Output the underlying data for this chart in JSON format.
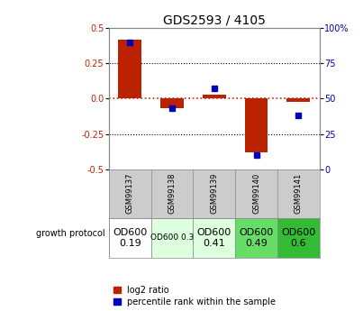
{
  "title": "GDS2593 / 4105",
  "samples": [
    "GSM99137",
    "GSM99138",
    "GSM99139",
    "GSM99140",
    "GSM99141"
  ],
  "log2_ratio": [
    0.42,
    -0.07,
    0.03,
    -0.38,
    -0.02
  ],
  "percentile_rank": [
    90,
    43,
    57,
    10,
    38
  ],
  "ylim_left": [
    -0.5,
    0.5
  ],
  "ylim_right": [
    0,
    100
  ],
  "yticks_left": [
    -0.5,
    -0.25,
    0.0,
    0.25,
    0.5
  ],
  "yticks_right": [
    0,
    25,
    50,
    75,
    100
  ],
  "growth_protocol_labels": [
    "OD600\n0.19",
    "OD600 0.3",
    "OD600\n0.41",
    "OD600\n0.49",
    "OD600\n0.6"
  ],
  "growth_protocol_colors": [
    "#ffffff",
    "#ddffdd",
    "#ddffdd",
    "#66dd66",
    "#33bb33"
  ],
  "growth_protocol_fontsizes": [
    8,
    6.5,
    8,
    8,
    8
  ],
  "bar_color_red": "#bb2200",
  "bar_color_blue": "#0000bb",
  "zero_line_color": "#cc2200",
  "dotted_line_color": "#000000",
  "sample_label_bg": "#cccccc",
  "legend_red_label": "log2 ratio",
  "legend_blue_label": "percentile rank within the sample",
  "bar_width": 0.55,
  "blue_marker_size": 5
}
